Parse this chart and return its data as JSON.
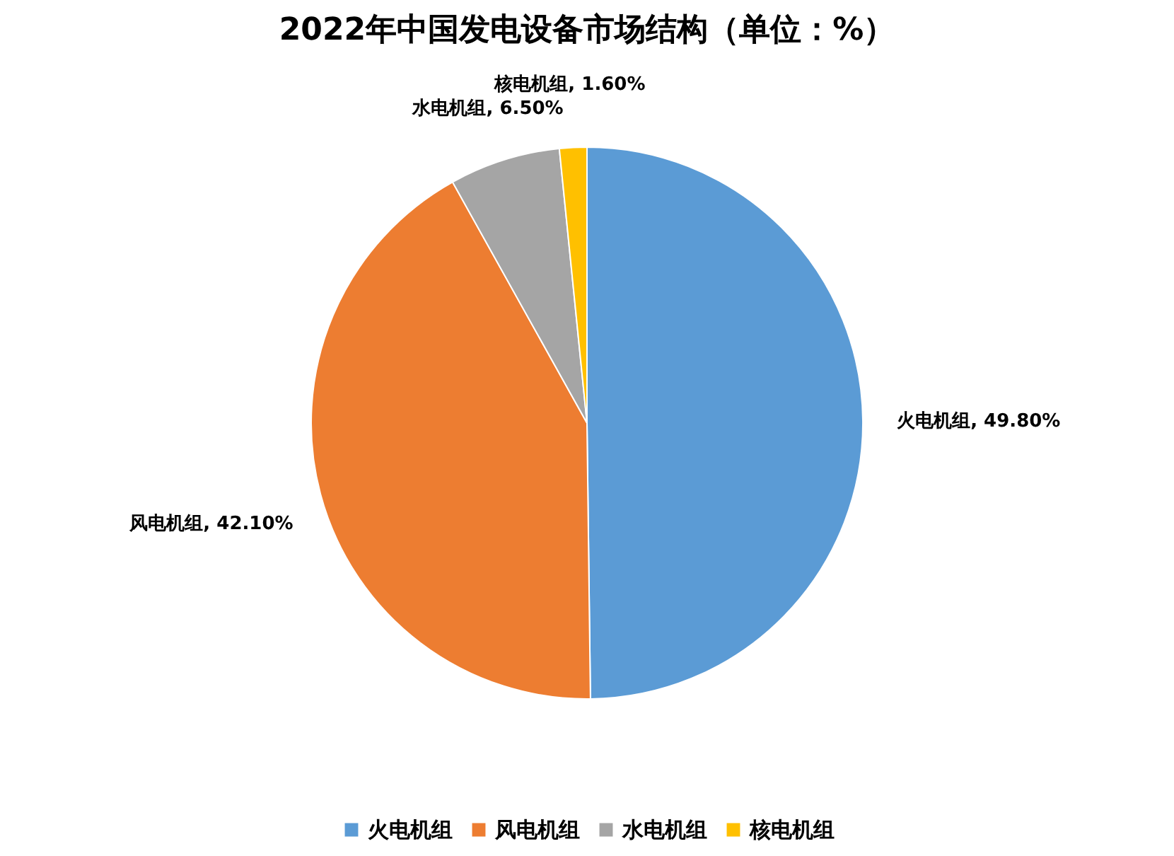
{
  "chart_data": {
    "type": "pie",
    "title": "2022年中国发电设备市场结构（单位：%）",
    "categories": [
      "火电机组",
      "风电机组",
      "水电机组",
      "核电机组"
    ],
    "values": [
      49.8,
      42.1,
      6.5,
      1.6
    ],
    "value_labels": [
      "火电机组, 49.80%",
      "风电机组, 42.10%",
      "水电机组, 6.50%",
      "核电机组, 1.60%"
    ],
    "colors": [
      "#5b9bd5",
      "#ed7d31",
      "#a5a5a5",
      "#ffc000"
    ],
    "legend": "bottom"
  }
}
